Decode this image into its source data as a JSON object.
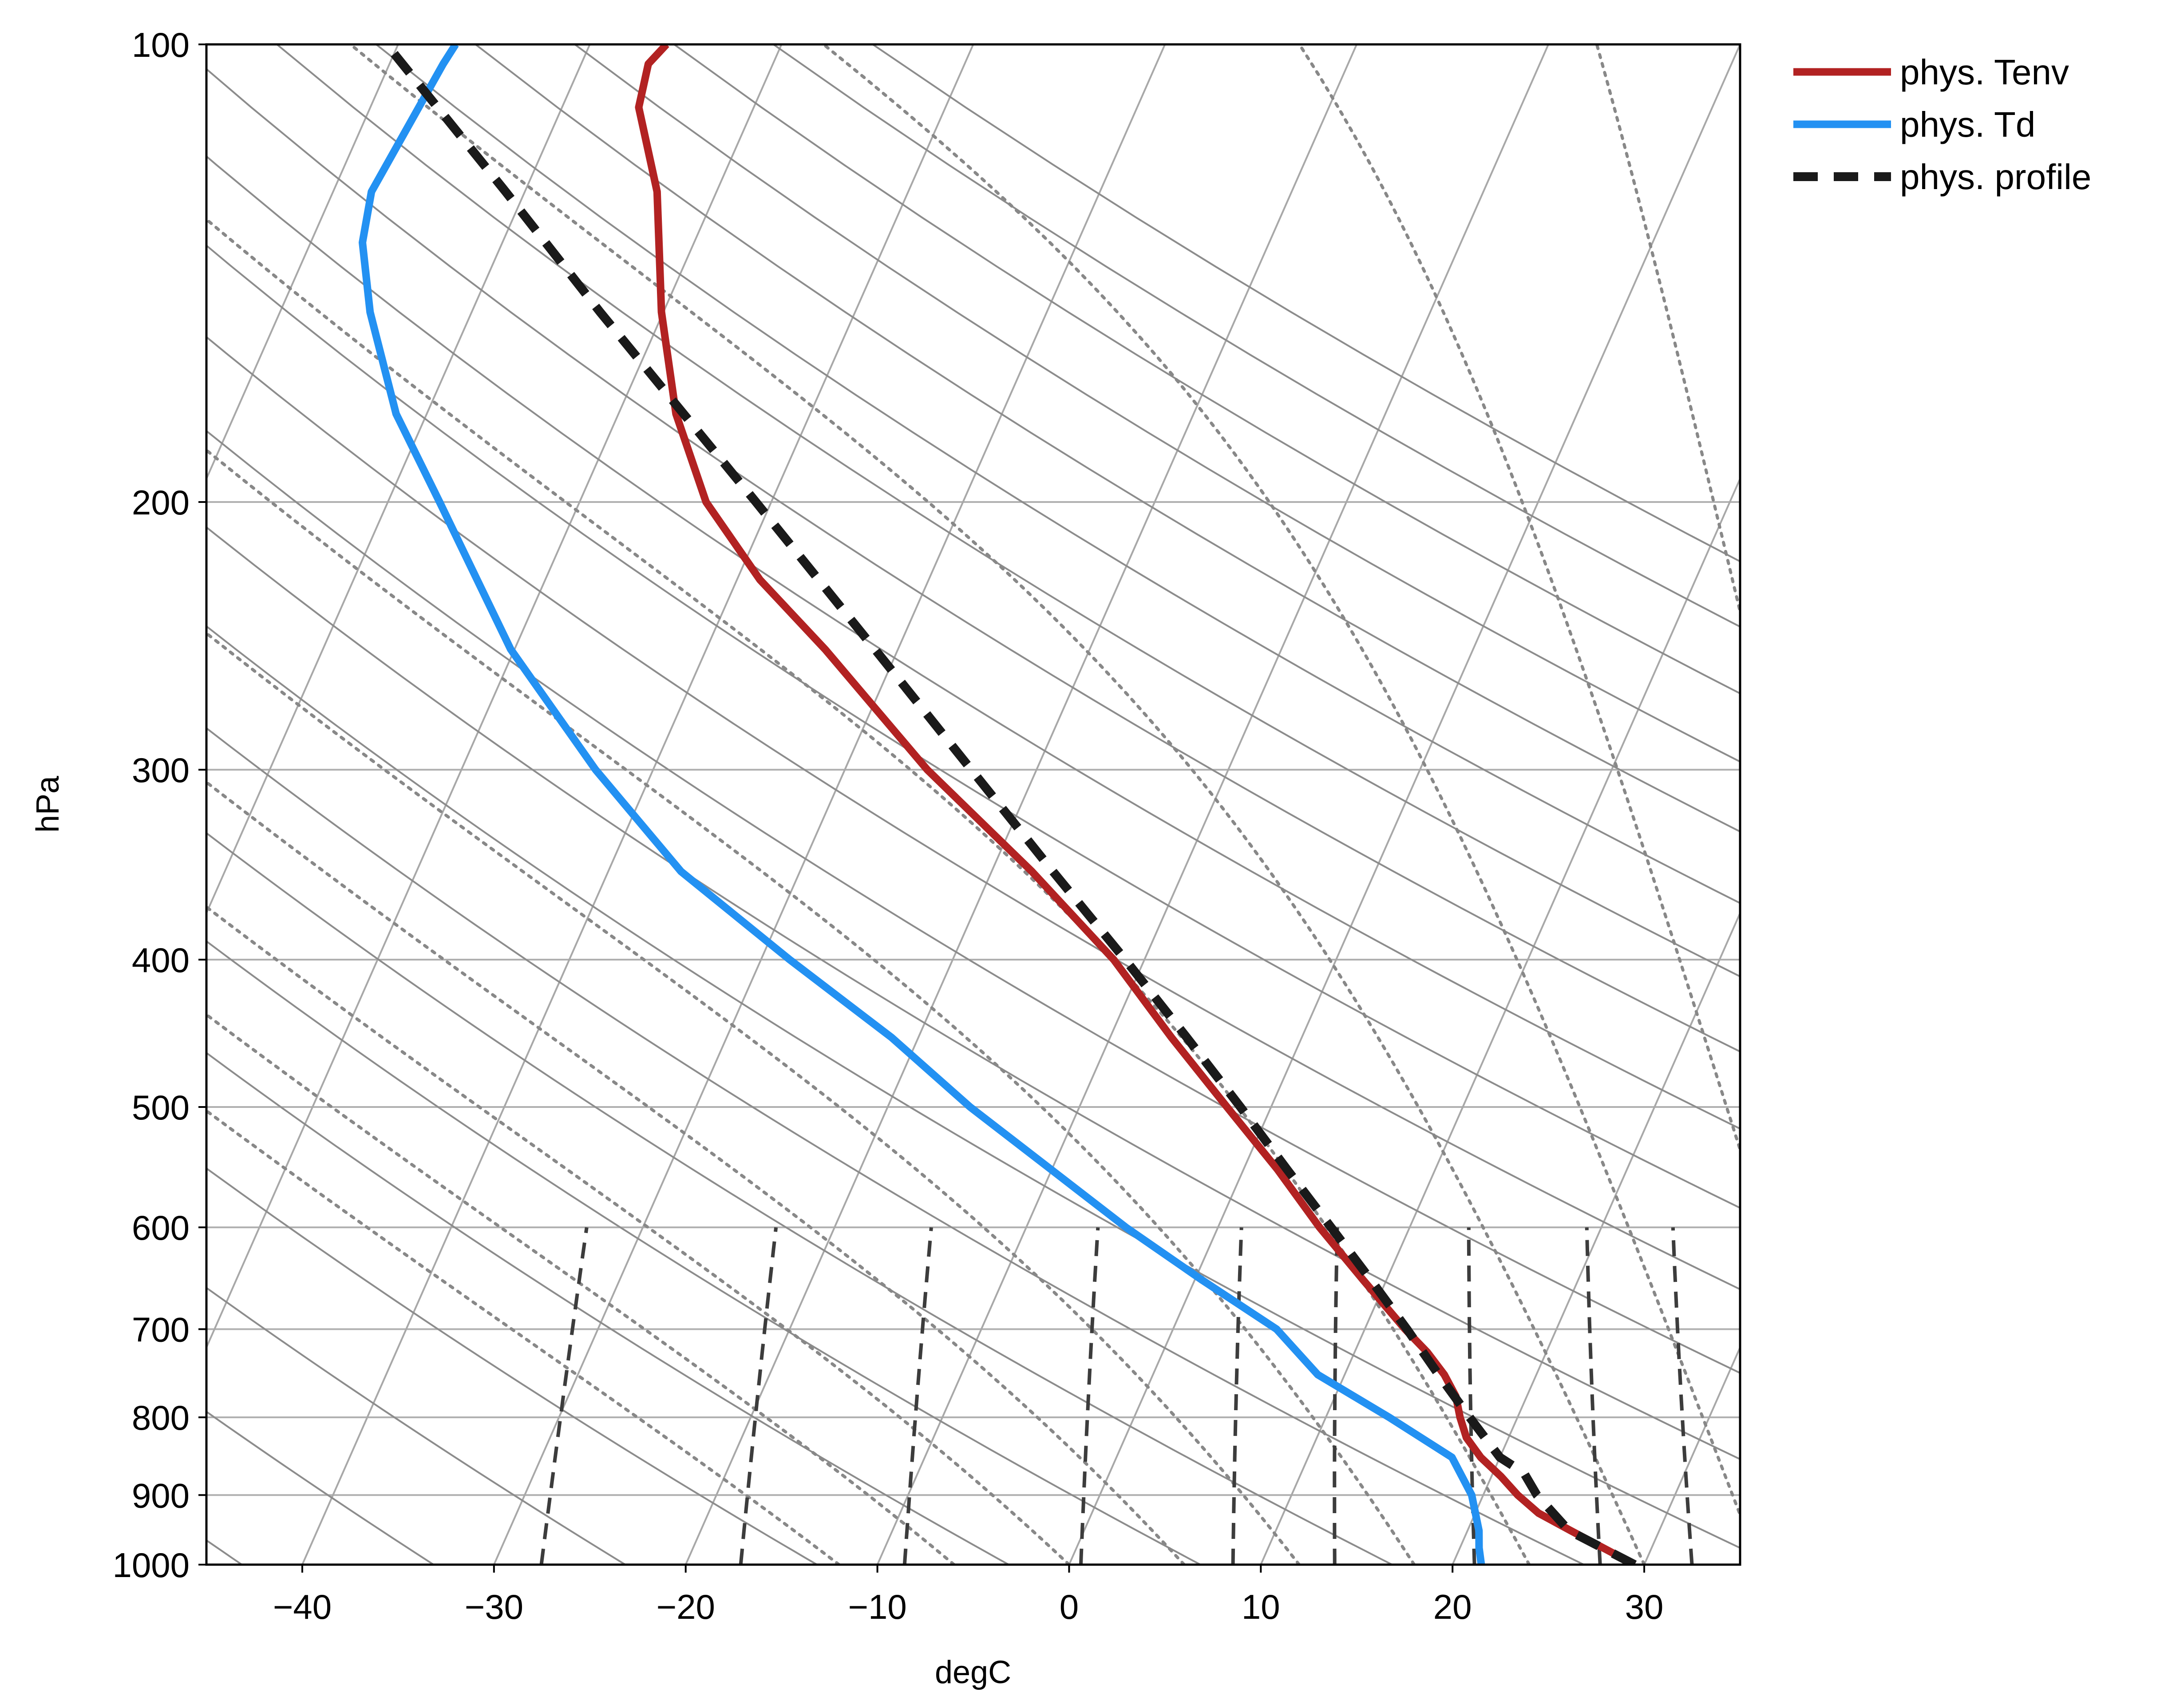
{
  "chart_data": {
    "type": "line",
    "subtype": "skew-T log-P diagram",
    "title": "",
    "xlabel": "degC",
    "ylabel": "hPa",
    "xlim": [
      -45,
      35
    ],
    "ylim": [
      1000,
      100
    ],
    "yscale": "log",
    "x_ticks": [
      -40,
      -30,
      -20,
      -10,
      0,
      10,
      20,
      30
    ],
    "x_tick_labels": [
      "−40",
      "−30",
      "−20",
      "−10",
      "0",
      "10",
      "20",
      "30"
    ],
    "y_ticks": [
      100,
      200,
      300,
      400,
      500,
      600,
      700,
      800,
      900,
      1000
    ],
    "y_tick_labels": [
      "100",
      "200",
      "300",
      "400",
      "500",
      "600",
      "700",
      "800",
      "900",
      "1000"
    ],
    "grid": true,
    "legend_position": "outside-top-right",
    "series": [
      {
        "name": "phys. Tenv",
        "color": "#b22222",
        "style": "solid",
        "points": [
          {
            "p": 1000,
            "T": 29.5
          },
          {
            "p": 950,
            "T": 25.4
          },
          {
            "p": 925,
            "T": 23.3
          },
          {
            "p": 900,
            "T": 21.8
          },
          {
            "p": 875,
            "T": 20.5
          },
          {
            "p": 850,
            "T": 19.0
          },
          {
            "p": 825,
            "T": 17.8
          },
          {
            "p": 800,
            "T": 17.0
          },
          {
            "p": 775,
            "T": 16.3
          },
          {
            "p": 750,
            "T": 15.2
          },
          {
            "p": 725,
            "T": 13.8
          },
          {
            "p": 700,
            "T": 12.1
          },
          {
            "p": 650,
            "T": 8.8
          },
          {
            "p": 600,
            "T": 5.3
          },
          {
            "p": 550,
            "T": 1.8
          },
          {
            "p": 500,
            "T": -2.3
          },
          {
            "p": 450,
            "T": -6.8
          },
          {
            "p": 400,
            "T": -11.6
          },
          {
            "p": 350,
            "T": -17.9
          },
          {
            "p": 300,
            "T": -25.7
          },
          {
            "p": 250,
            "T": -33.8
          },
          {
            "p": 225,
            "T": -38.8
          },
          {
            "p": 200,
            "T": -43.4
          },
          {
            "p": 175,
            "T": -47.0
          },
          {
            "p": 150,
            "T": -50.1
          },
          {
            "p": 125,
            "T": -53.1
          },
          {
            "p": 110,
            "T": -56.0
          },
          {
            "p": 103,
            "T": -56.5
          },
          {
            "p": 100,
            "T": -56.0
          }
        ]
      },
      {
        "name": "phys. Td",
        "color": "#2391f2",
        "style": "solid",
        "points": [
          {
            "p": 1000,
            "T": 21.5
          },
          {
            "p": 975,
            "T": 21.0
          },
          {
            "p": 950,
            "T": 20.6
          },
          {
            "p": 900,
            "T": 19.4
          },
          {
            "p": 850,
            "T": 17.5
          },
          {
            "p": 800,
            "T": 13.3
          },
          {
            "p": 750,
            "T": 8.6
          },
          {
            "p": 700,
            "T": 5.4
          },
          {
            "p": 650,
            "T": 0.4
          },
          {
            "p": 600,
            "T": -4.8
          },
          {
            "p": 550,
            "T": -10.0
          },
          {
            "p": 500,
            "T": -15.7
          },
          {
            "p": 450,
            "T": -21.4
          },
          {
            "p": 400,
            "T": -28.5
          },
          {
            "p": 350,
            "T": -36.2
          },
          {
            "p": 300,
            "T": -43.0
          },
          {
            "p": 250,
            "T": -50.2
          },
          {
            "p": 200,
            "T": -57.3
          },
          {
            "p": 175,
            "T": -61.6
          },
          {
            "p": 150,
            "T": -65.3
          },
          {
            "p": 135,
            "T": -67.3
          },
          {
            "p": 125,
            "T": -68.0
          },
          {
            "p": 103,
            "T": -67.2
          },
          {
            "p": 100,
            "T": -67.0
          }
        ]
      },
      {
        "name": "phys. profile",
        "color": "#1a1a1a",
        "style": "dashed",
        "points": [
          {
            "p": 1000,
            "T": 29.5
          },
          {
            "p": 950,
            "T": 25.3
          },
          {
            "p": 900,
            "T": 22.8
          },
          {
            "p": 870,
            "T": 21.6
          },
          {
            "p": 850,
            "T": 20.0
          },
          {
            "p": 800,
            "T": 17.5
          },
          {
            "p": 750,
            "T": 14.9
          },
          {
            "p": 700,
            "T": 12.2
          },
          {
            "p": 650,
            "T": 9.2
          },
          {
            "p": 600,
            "T": 5.9
          },
          {
            "p": 550,
            "T": 2.3
          },
          {
            "p": 500,
            "T": -1.6
          },
          {
            "p": 450,
            "T": -6.0
          },
          {
            "p": 400,
            "T": -11.0
          },
          {
            "p": 350,
            "T": -16.8
          },
          {
            "p": 300,
            "T": -23.4
          },
          {
            "p": 250,
            "T": -31.2
          },
          {
            "p": 200,
            "T": -40.8
          },
          {
            "p": 150,
            "T": -53.3
          },
          {
            "p": 125,
            "T": -61.0
          },
          {
            "p": 100,
            "T": -70.6
          }
        ]
      }
    ],
    "background_lines": {
      "isotherms": {
        "style": "solid",
        "color": "#a8a8a8",
        "values": [
          -140,
          -130,
          -120,
          -110,
          -100,
          -90,
          -80,
          -70,
          -60,
          -50,
          -40,
          -30,
          -20,
          -10,
          0,
          10,
          20,
          30,
          40
        ]
      },
      "dry_adiabats": {
        "style": "solid",
        "color": "#8c8c8c",
        "theta_K": [
          230,
          240,
          250,
          260,
          270,
          280,
          290,
          300,
          310,
          320,
          330,
          340,
          350,
          360,
          370,
          380,
          390,
          400,
          410,
          420,
          430,
          440
        ]
      },
      "moist_adiabats": {
        "style": "dotted",
        "color": "#888888",
        "start_T_at_1000": [
          -12,
          -6,
          0,
          6,
          12,
          18,
          24,
          30,
          36,
          42,
          48
        ]
      },
      "mixing_ratio_lines": {
        "style": "dashed",
        "color": "#3c3c3c",
        "top_hPa": 600,
        "values_g_per_kg": [
          0.4,
          1,
          2,
          4,
          7,
          10,
          16,
          24,
          32
        ]
      }
    }
  }
}
